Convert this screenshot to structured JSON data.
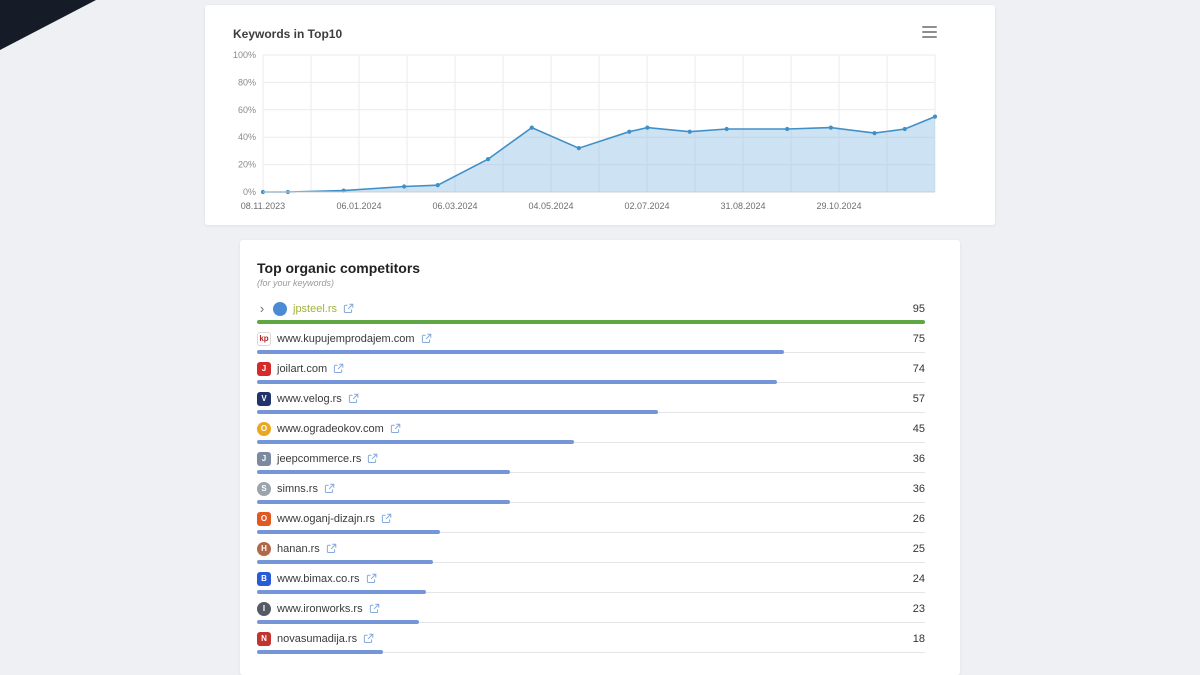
{
  "page": {
    "background": "#eef0f4",
    "corner_color": "#151c28"
  },
  "keywords_card": {
    "title": "Keywords in Top10",
    "menu_icon": "hamburger-icon"
  },
  "chart_data": {
    "type": "area",
    "title": "Keywords in Top10",
    "x_tick_labels": [
      "08.11.2023",
      "06.01.2024",
      "06.03.2024",
      "04.05.2024",
      "02.07.2024",
      "31.08.2024",
      "29.10.2024"
    ],
    "y_tick_labels": [
      "0%",
      "20%",
      "40%",
      "60%",
      "80%",
      "100%"
    ],
    "ylim": [
      0,
      100
    ],
    "grid": true,
    "legend": "none",
    "line_color": "#4090c8",
    "fill_color": "rgba(144,190,228,0.45)",
    "series": [
      {
        "name": "Keywords in Top10 (%)",
        "x": [
          0.0,
          0.037,
          0.12,
          0.21,
          0.26,
          0.335,
          0.4,
          0.47,
          0.545,
          0.572,
          0.635,
          0.69,
          0.78,
          0.845,
          0.91,
          0.955,
          1.0
        ],
        "values": [
          0,
          0,
          1,
          4,
          5,
          24,
          47,
          32,
          44,
          47,
          44,
          46,
          46,
          47,
          43,
          46,
          55
        ]
      }
    ]
  },
  "competitors": {
    "title": "Top organic competitors",
    "subtitle": "(for your keywords)",
    "max_value": 95,
    "bar_color": "#7496d8",
    "highlight_bar_color": "#5fa744",
    "highlight_text_color": "#a3b239",
    "rows": [
      {
        "domain": "jpsteel.rs",
        "value": 95,
        "highlight": true,
        "expandable": true,
        "favicon": {
          "label": "",
          "bg": "#4b8bd5",
          "color": "#ffffff",
          "shape": "circle"
        }
      },
      {
        "domain": "www.kupujemprodajem.com",
        "value": 75,
        "favicon": {
          "label": "kp",
          "bg": "#ffffff",
          "color": "#b3262a",
          "shape": "square",
          "border": true
        }
      },
      {
        "domain": "joilart.com",
        "value": 74,
        "favicon": {
          "label": "J",
          "bg": "#d42a2a",
          "color": "#ffffff",
          "shape": "square"
        }
      },
      {
        "domain": "www.velog.rs",
        "value": 57,
        "favicon": {
          "label": "V",
          "bg": "#20336b",
          "color": "#ffffff",
          "shape": "square"
        }
      },
      {
        "domain": "www.ogradeokov.com",
        "value": 45,
        "favicon": {
          "label": "O",
          "bg": "#e8a820",
          "color": "#ffffff",
          "shape": "circle"
        }
      },
      {
        "domain": "jeepcommerce.rs",
        "value": 36,
        "favicon": {
          "label": "J",
          "bg": "#7b8aa0",
          "color": "#ffffff",
          "shape": "square"
        }
      },
      {
        "domain": "simns.rs",
        "value": 36,
        "favicon": {
          "label": "S",
          "bg": "#9aa4ad",
          "color": "#ffffff",
          "shape": "circle"
        }
      },
      {
        "domain": "www.oganj-dizajn.rs",
        "value": 26,
        "favicon": {
          "label": "O",
          "bg": "#e25822",
          "color": "#ffffff",
          "shape": "square"
        }
      },
      {
        "domain": "hanan.rs",
        "value": 25,
        "favicon": {
          "label": "H",
          "bg": "#b06848",
          "color": "#ffffff",
          "shape": "circle"
        }
      },
      {
        "domain": "www.bimax.co.rs",
        "value": 24,
        "favicon": {
          "label": "B",
          "bg": "#2a5bd7",
          "color": "#ffffff",
          "shape": "square"
        }
      },
      {
        "domain": "www.ironworks.rs",
        "value": 23,
        "favicon": {
          "label": "I",
          "bg": "#555b63",
          "color": "#ffffff",
          "shape": "circle"
        }
      },
      {
        "domain": "novasumadija.rs",
        "value": 18,
        "favicon": {
          "label": "N",
          "bg": "#c2342e",
          "color": "#ffffff",
          "shape": "square"
        }
      }
    ]
  }
}
